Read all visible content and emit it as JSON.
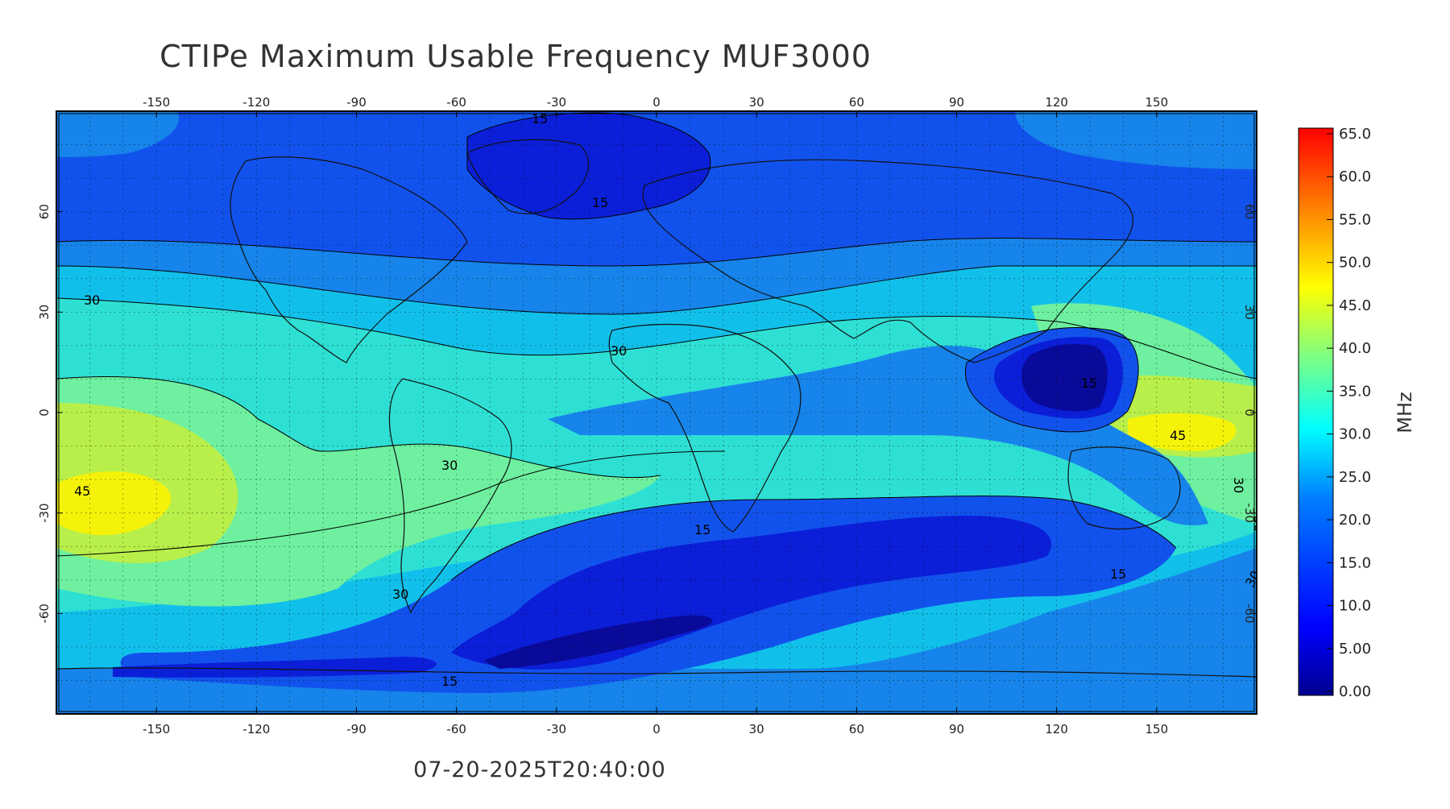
{
  "title": "CTIPe Maximum Usable Frequency MUF3000",
  "timestamp": "07-20-2025T20:40:00",
  "top_axis_ticks": [
    "-150",
    "-120",
    "-90",
    "-60",
    "-30",
    "0",
    "30",
    "60",
    "90",
    "120",
    "150"
  ],
  "bottom_axis_ticks": [
    "-150",
    "-120",
    "-90",
    "-60",
    "-30",
    "0",
    "30",
    "60",
    "90",
    "120",
    "150"
  ],
  "left_axis_ticks": [
    "60",
    "30",
    "0",
    "-30",
    "-60"
  ],
  "right_axis_ticks": [
    "60",
    "30",
    "0",
    "-30",
    "-60"
  ],
  "colorbar": {
    "label": "MHz",
    "ticks": [
      "65.0",
      "60.0",
      "55.0",
      "50.0",
      "45.0",
      "40.0",
      "35.0",
      "30.0",
      "25.0",
      "20.0",
      "15.0",
      "10.0",
      "5.00",
      "0.00"
    ],
    "colors": [
      "#00008f",
      "#0000ff",
      "#0080ff",
      "#00ffff",
      "#80ff80",
      "#ffff00",
      "#ff8000",
      "#ff0000"
    ]
  },
  "contour_labels": [
    "15",
    "15",
    "30",
    "30",
    "30",
    "45",
    "30",
    "15",
    "15",
    "15",
    "30",
    "45",
    "30",
    "30",
    "15"
  ],
  "level_colors": {
    "c5": "#0a0a9a",
    "c10": "#0b1fd8",
    "c15": "#1252ec",
    "c20": "#1684ea",
    "c25": "#11c0ea",
    "c30": "#2ee0d4",
    "c35": "#6ef0a0",
    "c40": "#b8ef4a",
    "c45": "#f5f20a"
  }
}
